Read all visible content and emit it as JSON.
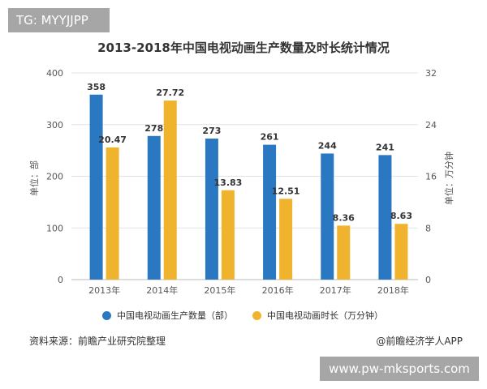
{
  "tag": "TG: MYYJJPP",
  "watermark": "www.pw-mksports.com",
  "source": "资料来源：前瞻产业研究院整理",
  "credit": "@前瞻经济学人APP",
  "chart_data": {
    "type": "bar",
    "title": "2013-2018年中国电视动画生产数量及时长统计情况",
    "categories": [
      "2013年",
      "2014年",
      "2015年",
      "2016年",
      "2017年",
      "2018年"
    ],
    "series": [
      {
        "name": "中国电视动画生产数量（部）",
        "axis": "left",
        "color": "#2a78c2",
        "values": [
          358,
          278,
          273,
          261,
          244,
          241
        ],
        "labels": [
          "358",
          "278",
          "273",
          "261",
          "244",
          "241"
        ]
      },
      {
        "name": "中国电视动画时长（万分钟）",
        "axis": "right",
        "color": "#f0b32e",
        "values": [
          20.47,
          27.72,
          13.83,
          12.51,
          8.36,
          8.63
        ],
        "labels": [
          "20.47",
          "27.72",
          "13.83",
          "12.51",
          "8.36",
          "8.63"
        ]
      }
    ],
    "ylabel": "单位：部",
    "y2label": "单位：万分钟",
    "ylim": [
      0,
      400
    ],
    "y2lim": [
      0,
      32
    ],
    "yticks": [
      "0",
      "100",
      "200",
      "300",
      "400"
    ],
    "y2ticks": [
      "0",
      "8",
      "16",
      "24",
      "32"
    ],
    "grid": true,
    "legend": "bottom"
  }
}
